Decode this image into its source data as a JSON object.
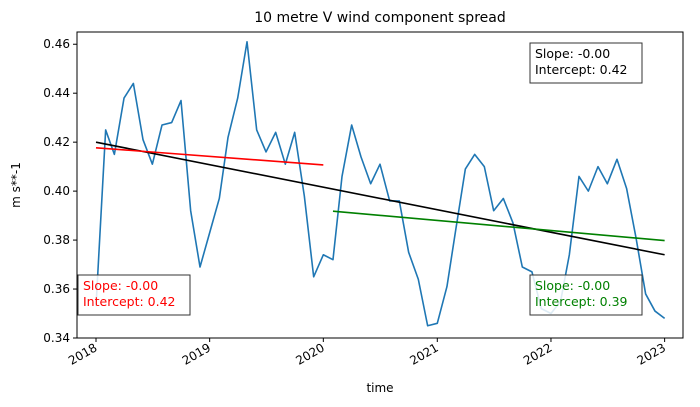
{
  "chart_data": {
    "type": "line",
    "title": "10 metre V wind component spread",
    "xlabel": "time",
    "ylabel": "m s**-1",
    "xlim": [
      "2017-11-01",
      "2023-03-01"
    ],
    "ylim": [
      0.34,
      0.465
    ],
    "x_ticks": [
      {
        "date": "2018-01-01",
        "label": "2018"
      },
      {
        "date": "2019-01-01",
        "label": "2019"
      },
      {
        "date": "2020-01-01",
        "label": "2020"
      },
      {
        "date": "2021-01-01",
        "label": "2021"
      },
      {
        "date": "2022-01-01",
        "label": "2022"
      },
      {
        "date": "2023-01-01",
        "label": "2023"
      }
    ],
    "y_ticks": [
      0.34,
      0.36,
      0.38,
      0.4,
      0.42,
      0.44,
      0.46
    ],
    "y_tick_labels": [
      "0.34",
      "0.36",
      "0.38",
      "0.40",
      "0.42",
      "0.44",
      "0.46"
    ],
    "grid": false,
    "series": [
      {
        "color": "#1f77b4",
        "x": [
          "2018-01-01",
          "2018-02-01",
          "2018-03-01",
          "2018-04-01",
          "2018-05-01",
          "2018-06-01",
          "2018-07-01",
          "2018-08-01",
          "2018-09-01",
          "2018-10-01",
          "2018-11-01",
          "2018-12-01",
          "2019-01-01",
          "2019-02-01",
          "2019-03-01",
          "2019-04-01",
          "2019-05-01",
          "2019-06-01",
          "2019-07-01",
          "2019-08-01",
          "2019-09-01",
          "2019-10-01",
          "2019-11-01",
          "2019-12-01",
          "2020-01-01",
          "2020-02-01",
          "2020-03-01",
          "2020-04-01",
          "2020-05-01",
          "2020-06-01",
          "2020-07-01",
          "2020-08-01",
          "2020-09-01",
          "2020-10-01",
          "2020-11-01",
          "2020-12-01",
          "2021-01-01",
          "2021-02-01",
          "2021-03-01",
          "2021-04-01",
          "2021-05-01",
          "2021-06-01",
          "2021-07-01",
          "2021-08-01",
          "2021-09-01",
          "2021-10-01",
          "2021-11-01",
          "2021-12-01",
          "2022-01-01",
          "2022-02-01",
          "2022-03-01",
          "2022-04-01",
          "2022-05-01",
          "2022-06-01",
          "2022-07-01",
          "2022-08-01",
          "2022-09-01",
          "2022-10-01",
          "2022-11-01",
          "2022-12-01",
          "2023-01-01"
        ],
        "values": [
          0.353,
          0.425,
          0.415,
          0.438,
          0.444,
          0.421,
          0.411,
          0.427,
          0.428,
          0.437,
          0.392,
          0.369,
          0.383,
          0.397,
          0.422,
          0.438,
          0.461,
          0.425,
          0.416,
          0.424,
          0.411,
          0.424,
          0.398,
          0.365,
          0.374,
          0.372,
          0.406,
          0.427,
          0.414,
          0.403,
          0.411,
          0.396,
          0.396,
          0.375,
          0.364,
          0.345,
          0.346,
          0.361,
          0.384,
          0.409,
          0.415,
          0.41,
          0.392,
          0.397,
          0.387,
          0.369,
          0.367,
          0.352,
          0.35,
          0.355,
          0.374,
          0.406,
          0.4,
          0.41,
          0.403,
          0.413,
          0.401,
          0.381,
          0.358,
          0.351,
          0.348
        ]
      }
    ],
    "trend_lines": [
      {
        "color": "#000000",
        "x": [
          "2018-01-01",
          "2023-01-01"
        ],
        "values": [
          0.42,
          0.374
        ]
      },
      {
        "color": "#ff0000",
        "x": [
          "2018-01-01",
          "2020-01-01"
        ],
        "values": [
          0.4177,
          0.4107
        ]
      },
      {
        "color": "#008000",
        "x": [
          "2020-02-01",
          "2023-01-01"
        ],
        "values": [
          0.3918,
          0.3798
        ]
      }
    ],
    "annotations": [
      {
        "lines": [
          "Slope: -0.00",
          "Intercept: 0.42"
        ],
        "color": "#000000",
        "placement": "top-right"
      },
      {
        "lines": [
          "Slope: -0.00",
          "Intercept: 0.42"
        ],
        "color": "#ff0000",
        "placement": "bottom-left"
      },
      {
        "lines": [
          "Slope: -0.00",
          "Intercept: 0.39"
        ],
        "color": "#008000",
        "placement": "bottom-right"
      }
    ]
  }
}
